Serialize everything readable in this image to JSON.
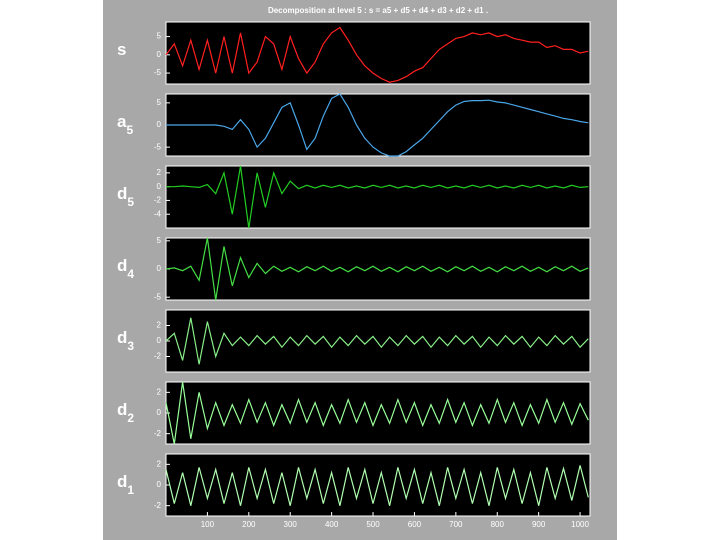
{
  "chart_data": [
    {
      "type": "line",
      "title": "Decomposition at level 5 : s = a5 + d5 + d4 + d3 + d2 + d1 .",
      "ylabel": "s",
      "color": "#ff2020",
      "x": [
        0,
        20,
        40,
        60,
        80,
        100,
        120,
        140,
        160,
        180,
        200,
        220,
        240,
        260,
        280,
        300,
        320,
        340,
        360,
        380,
        400,
        420,
        440,
        460,
        480,
        500,
        520,
        540,
        560,
        580,
        600,
        620,
        640,
        660,
        680,
        700,
        720,
        740,
        760,
        780,
        800,
        820,
        840,
        860,
        880,
        900,
        920,
        940,
        960,
        980,
        1000,
        1020
      ],
      "values": [
        0,
        3,
        -3,
        4,
        -4,
        4,
        -5,
        5,
        -5,
        6,
        -5,
        -2,
        5,
        3,
        -4,
        5,
        -1,
        -5,
        -2,
        3,
        6,
        7.5,
        4,
        0,
        -3,
        -5,
        -6.5,
        -7.5,
        -7,
        -6,
        -4.5,
        -3.5,
        -1,
        1.5,
        3,
        4.5,
        5,
        6,
        5.5,
        6,
        5,
        5.5,
        4.5,
        4,
        3.5,
        3.5,
        2,
        2.5,
        1.5,
        1.5,
        0.5,
        1
      ],
      "xlim": [
        0,
        1024
      ],
      "ylim": [
        -8,
        9
      ],
      "yticks": [
        -5,
        0,
        5
      ]
    },
    {
      "type": "line",
      "ylabel": "a",
      "ylabel_sub": "5",
      "color": "#4aa6e8",
      "x": [
        0,
        20,
        40,
        60,
        80,
        100,
        120,
        140,
        160,
        180,
        200,
        220,
        240,
        260,
        280,
        300,
        320,
        340,
        360,
        380,
        400,
        420,
        440,
        460,
        480,
        500,
        520,
        540,
        560,
        580,
        600,
        620,
        640,
        660,
        680,
        700,
        720,
        740,
        760,
        780,
        800,
        820,
        840,
        860,
        880,
        900,
        920,
        940,
        960,
        980,
        1000,
        1020
      ],
      "values": [
        0,
        0,
        0,
        0,
        0,
        0,
        0,
        -0.3,
        -1,
        1.2,
        -1,
        -5,
        -3,
        0.5,
        4,
        5,
        0,
        -5.5,
        -3,
        2,
        6,
        7,
        4,
        0,
        -3,
        -5,
        -6.3,
        -7,
        -7,
        -6,
        -4.5,
        -3,
        -1,
        1,
        3,
        4.5,
        5.3,
        5.5,
        5.5,
        5.6,
        5.2,
        5,
        4.5,
        4,
        3.5,
        3,
        2.5,
        2,
        1.5,
        1.2,
        0.8,
        0.5
      ],
      "xlim": [
        0,
        1024
      ],
      "ylim": [
        -7,
        7
      ],
      "yticks": [
        -5,
        0,
        5
      ]
    },
    {
      "type": "line",
      "ylabel": "d",
      "ylabel_sub": "5",
      "color": "#22cc22",
      "x": [
        0,
        20,
        40,
        60,
        80,
        100,
        120,
        140,
        160,
        180,
        200,
        220,
        240,
        260,
        280,
        300,
        320,
        340,
        360,
        380,
        400,
        420,
        440,
        460,
        480,
        500,
        520,
        540,
        560,
        580,
        600,
        620,
        640,
        660,
        680,
        700,
        720,
        740,
        760,
        780,
        800,
        820,
        840,
        860,
        880,
        900,
        920,
        940,
        960,
        980,
        1000,
        1020
      ],
      "values": [
        0,
        0,
        0.1,
        0,
        -0.1,
        0.3,
        -1,
        2,
        -4,
        3,
        -6,
        2,
        -3,
        2,
        -1,
        0.8,
        -0.3,
        0.2,
        -0.2,
        0.2,
        -0.1,
        0.2,
        -0.2,
        0.1,
        -0.2,
        0.2,
        -0.1,
        0.2,
        -0.2,
        0.1,
        -0.2,
        0.2,
        -0.1,
        0.2,
        -0.2,
        0.1,
        -0.2,
        0.2,
        -0.1,
        0.2,
        -0.2,
        0.1,
        -0.2,
        0.2,
        -0.1,
        0.2,
        -0.2,
        0.1,
        -0.2,
        0.2,
        -0.1,
        0
      ],
      "xlim": [
        0,
        1024
      ],
      "ylim": [
        -6,
        3
      ],
      "yticks": [
        -4,
        -2,
        0,
        2
      ]
    },
    {
      "type": "line",
      "ylabel": "d",
      "ylabel_sub": "4",
      "color": "#44dd44",
      "x": [
        0,
        20,
        40,
        60,
        80,
        100,
        120,
        140,
        160,
        180,
        200,
        220,
        240,
        260,
        280,
        300,
        320,
        340,
        360,
        380,
        400,
        420,
        440,
        460,
        480,
        500,
        520,
        540,
        560,
        580,
        600,
        620,
        640,
        660,
        680,
        700,
        720,
        740,
        760,
        780,
        800,
        820,
        840,
        860,
        880,
        900,
        920,
        940,
        960,
        980,
        1000,
        1020
      ],
      "values": [
        0,
        0.2,
        -0.3,
        0.5,
        -2,
        5.5,
        -5.5,
        4,
        -3,
        2,
        -1.5,
        1,
        -0.8,
        0.5,
        -0.4,
        0.3,
        -0.5,
        0.4,
        -0.3,
        0.5,
        -0.4,
        0.3,
        -0.5,
        0.4,
        -0.3,
        0.5,
        -0.4,
        0.3,
        -0.5,
        0.4,
        -0.3,
        0.5,
        -0.4,
        0.3,
        -0.5,
        0.4,
        -0.3,
        0.5,
        -0.4,
        0.3,
        -0.5,
        0.4,
        -0.3,
        0.5,
        -0.4,
        0.3,
        -0.5,
        0.4,
        -0.3,
        0.5,
        -0.4,
        0.2
      ],
      "xlim": [
        0,
        1024
      ],
      "ylim": [
        -5.5,
        5.5
      ],
      "yticks": [
        -5,
        0,
        5
      ]
    },
    {
      "type": "line",
      "ylabel": "d",
      "ylabel_sub": "3",
      "color": "#88ee88",
      "x": [
        0,
        20,
        40,
        60,
        80,
        100,
        120,
        140,
        160,
        180,
        200,
        220,
        240,
        260,
        280,
        300,
        320,
        340,
        360,
        380,
        400,
        420,
        440,
        460,
        480,
        500,
        520,
        540,
        560,
        580,
        600,
        620,
        640,
        660,
        680,
        700,
        720,
        740,
        760,
        780,
        800,
        820,
        840,
        860,
        880,
        900,
        920,
        940,
        960,
        980,
        1000,
        1020
      ],
      "values": [
        0,
        1,
        -2.5,
        3,
        -3,
        2.5,
        -2,
        1,
        -0.6,
        0.5,
        -0.6,
        0.7,
        -0.4,
        0.6,
        -0.8,
        0.5,
        -0.6,
        0.7,
        -0.4,
        0.6,
        -0.8,
        0.5,
        -0.6,
        0.7,
        -0.4,
        0.6,
        -0.8,
        0.5,
        -0.6,
        0.7,
        -0.4,
        0.6,
        -0.8,
        0.5,
        -0.6,
        0.7,
        -0.4,
        0.6,
        -0.8,
        0.5,
        -0.6,
        0.7,
        -0.4,
        0.6,
        -0.8,
        0.5,
        -0.6,
        0.7,
        -0.4,
        0.6,
        -0.8,
        0.3
      ],
      "xlim": [
        0,
        1024
      ],
      "ylim": [
        -4,
        4
      ],
      "yticks": [
        -2,
        0,
        2
      ]
    },
    {
      "type": "line",
      "ylabel": "d",
      "ylabel_sub": "2",
      "color": "#99ff99",
      "x": [
        0,
        20,
        40,
        60,
        80,
        100,
        120,
        140,
        160,
        180,
        200,
        220,
        240,
        260,
        280,
        300,
        320,
        340,
        360,
        380,
        400,
        420,
        440,
        460,
        480,
        500,
        520,
        540,
        560,
        580,
        600,
        620,
        640,
        660,
        680,
        700,
        720,
        740,
        760,
        780,
        800,
        820,
        840,
        860,
        880,
        900,
        920,
        940,
        960,
        980,
        1000,
        1020
      ],
      "values": [
        1,
        -3,
        3,
        -2.5,
        2,
        -1.5,
        1,
        -1.2,
        0.8,
        -1,
        1.3,
        -0.9,
        1,
        -1.2,
        0.8,
        -1,
        1.3,
        -0.9,
        1,
        -1.2,
        0.8,
        -1,
        1.3,
        -0.9,
        1,
        -1.2,
        0.8,
        -1,
        1.3,
        -0.9,
        1,
        -1.2,
        0.8,
        -1,
        1.3,
        -0.9,
        1,
        -1.2,
        0.8,
        -1,
        1.3,
        -0.9,
        1,
        -1.2,
        0.8,
        -1,
        1.3,
        -0.9,
        1,
        -1.1,
        0.9,
        -0.7
      ],
      "xlim": [
        0,
        1024
      ],
      "ylim": [
        -3,
        3
      ],
      "yticks": [
        -2,
        0,
        2
      ]
    },
    {
      "type": "line",
      "ylabel": "d",
      "ylabel_sub": "1",
      "color": "#b0ffb0",
      "x": [
        0,
        20,
        40,
        60,
        80,
        100,
        120,
        140,
        160,
        180,
        200,
        220,
        240,
        260,
        280,
        300,
        320,
        340,
        360,
        380,
        400,
        420,
        440,
        460,
        480,
        500,
        520,
        540,
        560,
        580,
        600,
        620,
        640,
        660,
        680,
        700,
        720,
        740,
        760,
        780,
        800,
        820,
        840,
        860,
        880,
        900,
        920,
        940,
        960,
        980,
        1000,
        1020
      ],
      "values": [
        1.5,
        -1.8,
        1.2,
        -2,
        1.7,
        -1.3,
        1.5,
        -1.8,
        1.2,
        -2,
        1.7,
        -1.3,
        1.5,
        -1.8,
        1.2,
        -2,
        1.7,
        -1.3,
        1.5,
        -1.8,
        1.2,
        -2,
        1.7,
        -1.3,
        1.5,
        -1.8,
        1.2,
        -2,
        1.7,
        -1.3,
        1.5,
        -1.8,
        1.2,
        -2,
        1.7,
        -1.3,
        1.5,
        -1.8,
        1.2,
        -2,
        1.7,
        -1.3,
        1.5,
        -1.8,
        1.2,
        -2,
        1.7,
        -1.3,
        1.6,
        -1.5,
        1.9,
        -1.2
      ],
      "xlim": [
        0,
        1024
      ],
      "ylim": [
        -3,
        3
      ],
      "yticks": [
        -2,
        0,
        2
      ],
      "xticks": [
        100,
        200,
        300,
        400,
        500,
        600,
        700,
        800,
        900,
        1000
      ]
    }
  ]
}
